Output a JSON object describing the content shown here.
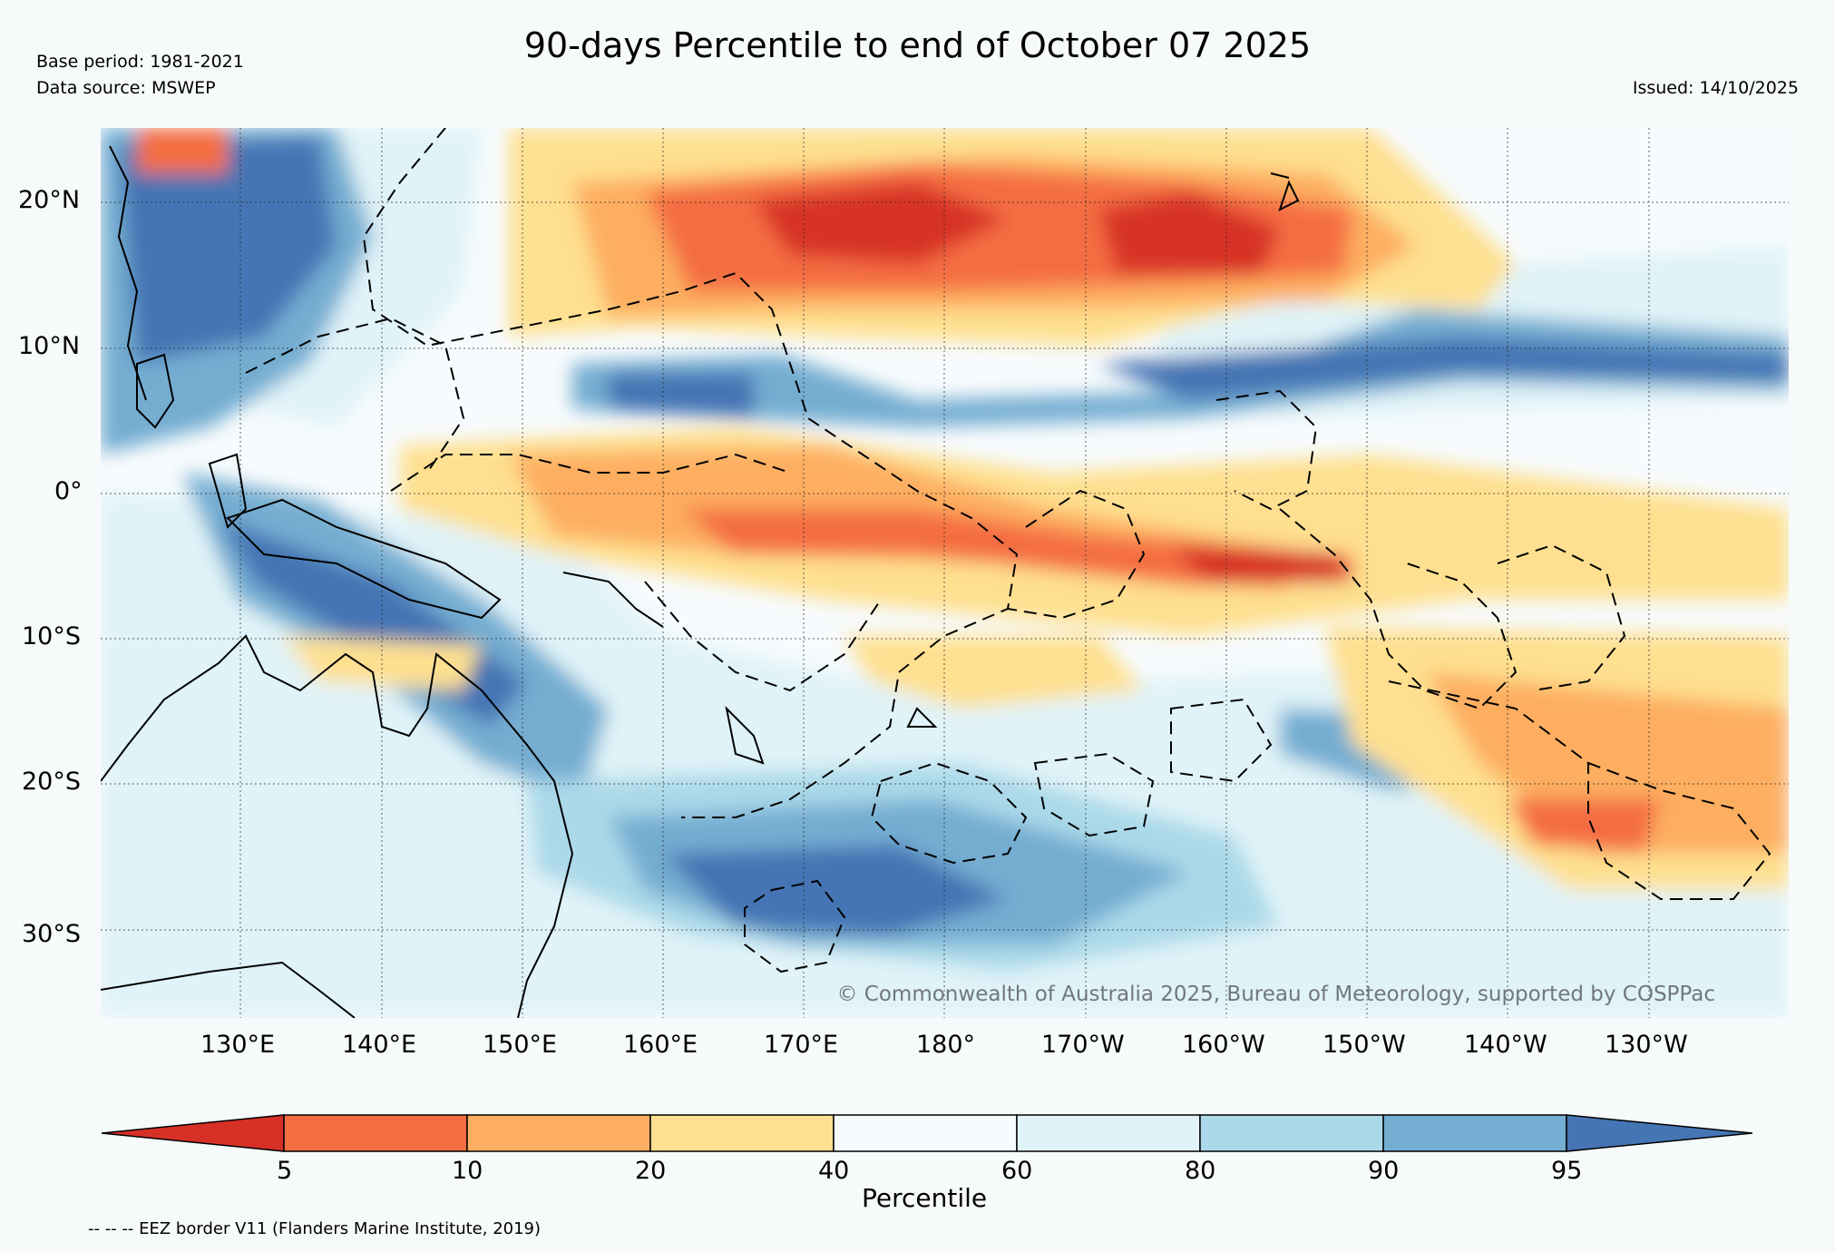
{
  "title": "90-days Percentile to end of October 07 2025",
  "base_period": "Base period: 1981-2021",
  "data_source": "Data source: MSWEP",
  "issued": "Issued: 14/10/2025",
  "copyright": "© Commonwealth of Australia 2025, Bureau of Meteorology, supported by COSPPac",
  "axes": {
    "lon_ticks": [
      "130°E",
      "140°E",
      "150°E",
      "160°E",
      "170°E",
      "180°",
      "170°W",
      "160°W",
      "150°W",
      "140°W",
      "130°W"
    ],
    "lat_ticks": [
      "20°N",
      "10°N",
      "0°",
      "10°S",
      "20°S",
      "30°S"
    ]
  },
  "colorbar": {
    "title": "Percentile",
    "boundaries": [
      "5",
      "10",
      "20",
      "40",
      "60",
      "80",
      "90",
      "95"
    ],
    "colors": {
      "below_5": "#d73027",
      "p5_10": "#f46d43",
      "p10_20": "#fdae61",
      "p20_40": "#fee090",
      "p40_60": "#f7fbfd",
      "p60_80": "#e0f3f8",
      "p80_90": "#abd9e9",
      "p90_95": "#74add1",
      "above_95": "#4575b4"
    }
  },
  "footnote": "-- -- -- EEZ border V11 (Flanders Marine Institute, 2019)"
}
